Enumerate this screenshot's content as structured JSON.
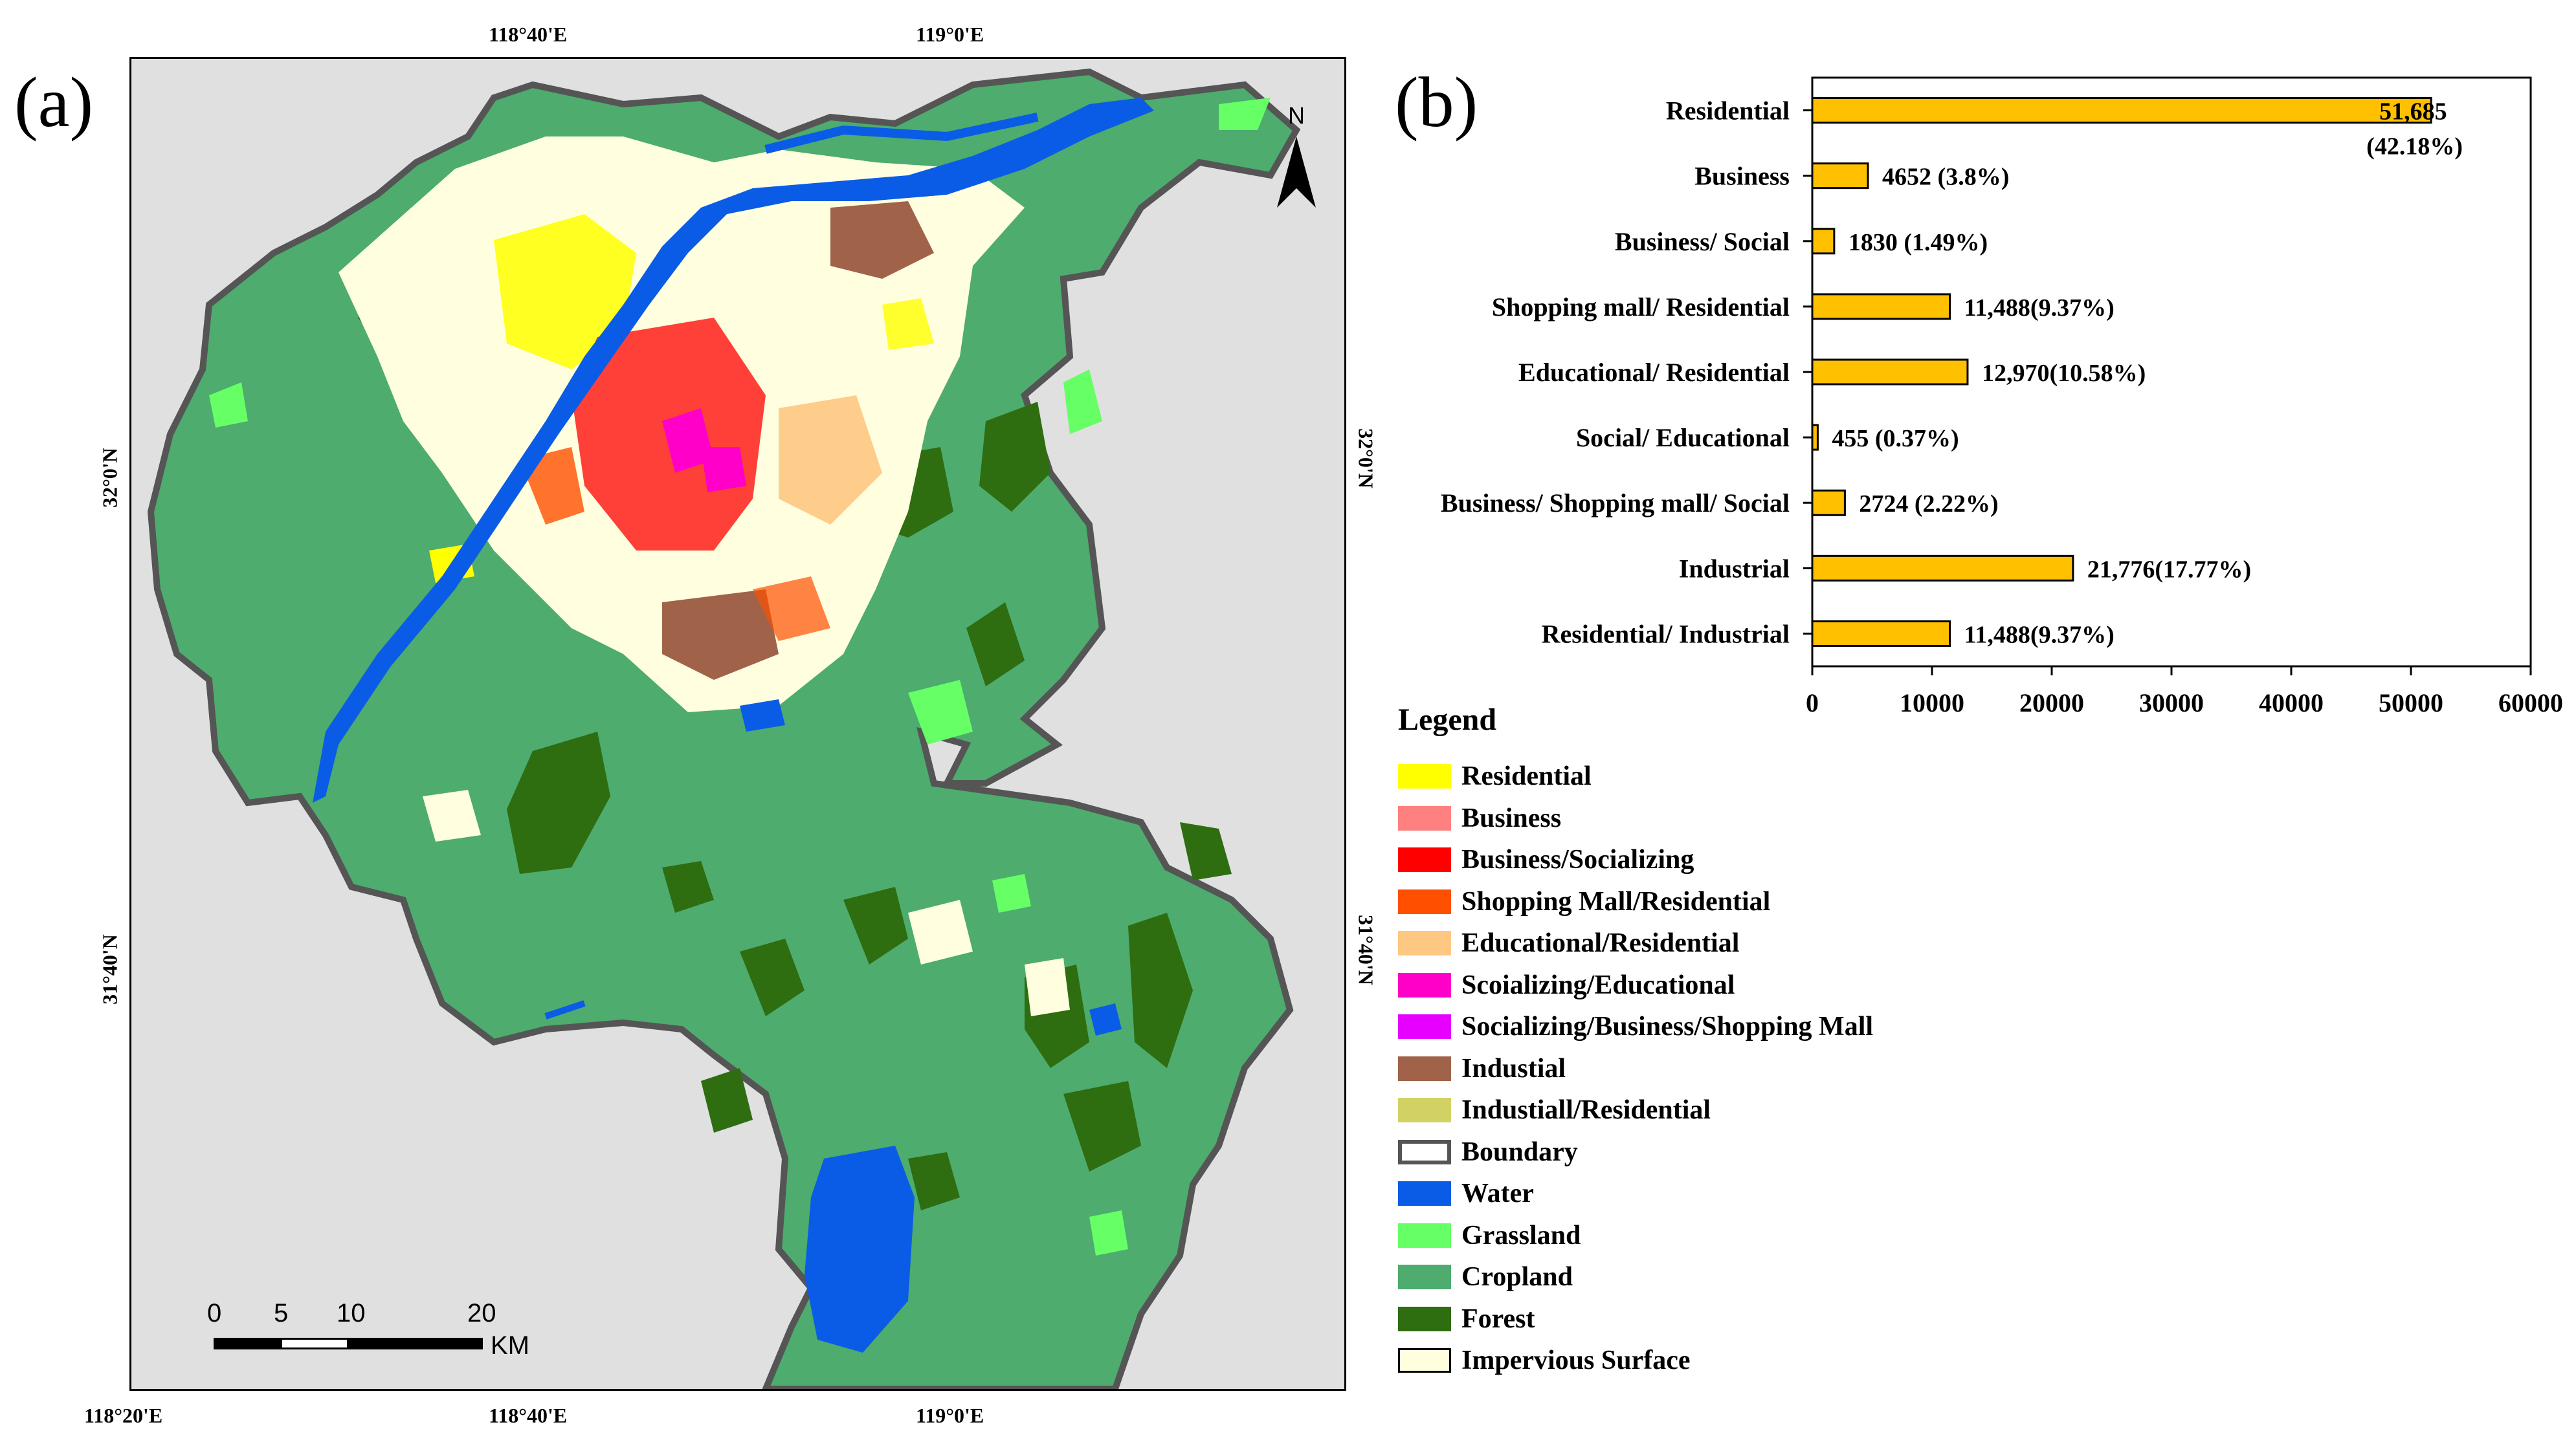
{
  "panels": {
    "a": "(a)",
    "b": "(b)"
  },
  "map": {
    "coords_top": [
      "118°40'E",
      "119°0'E"
    ],
    "coords_bottom": [
      "118°20'E",
      "118°40'E",
      "119°0'E"
    ],
    "coords_left": [
      "32°0'N",
      "31°40'N"
    ],
    "coords_right": [
      "32°0'N",
      "31°40'N"
    ],
    "north_label": "N",
    "scale_labels": [
      "0",
      "5",
      "10",
      "20"
    ],
    "scale_unit": "KM",
    "colors": {
      "background": "#e0e0e0",
      "cropland": "#4dac6e",
      "forest": "#2e6d10",
      "grassland": "#66ff66",
      "water": "#0a5ce6",
      "impervious": "#ffffe0",
      "residential": "#ffff00",
      "business_social": "#ff0000",
      "industrial": "#a0634a",
      "educational": "#ffc882",
      "social_edu": "#ff00c8",
      "boundary": "#555555"
    }
  },
  "chart_data": {
    "type": "bar",
    "orientation": "horizontal",
    "categories": [
      "Residential",
      "Business",
      "Business/ Social",
      "Shopping mall/ Residential",
      "Educational/ Residential",
      "Social/ Educational",
      "Business/ Shopping mall/ Social",
      "Industrial",
      "Residential/ Industrial"
    ],
    "values": [
      51685,
      4652,
      1830,
      11488,
      12970,
      455,
      2724,
      21776,
      11488
    ],
    "data_labels": [
      "51,685",
      "4652  (3.8%)",
      "1830  (1.49%)",
      "11,488(9.37%)",
      "12,970(10.58%)",
      "455  (0.37%)",
      "2724  (2.22%)",
      "21,776(17.77%)",
      "11,488(9.37%)"
    ],
    "data_label_extra": "(42.18%)",
    "xlim": [
      0,
      60000
    ],
    "xticks": [
      "0",
      "10000",
      "20000",
      "30000",
      "40000",
      "50000",
      "60000"
    ],
    "bar_color": "#ffc000",
    "title": "",
    "xlabel": "",
    "ylabel": ""
  },
  "legend": {
    "title": "Legend",
    "items": [
      {
        "label": "Residential",
        "color": "#ffff00"
      },
      {
        "label": "Business",
        "color": "#ff8080"
      },
      {
        "label": "Business/Socializing",
        "color": "#ff0000"
      },
      {
        "label": "Shopping Mall/Residential",
        "color": "#ff5000"
      },
      {
        "label": "Educational/Residential",
        "color": "#ffc882"
      },
      {
        "label": "Scoializing/Educational",
        "color": "#ff00c8"
      },
      {
        "label": "Socializing/Business/Shopping Mall",
        "color": "#e600ff"
      },
      {
        "label": "Industial",
        "color": "#a0634a"
      },
      {
        "label": "Industiall/Residential",
        "color": "#d2d264"
      },
      {
        "label": "Boundary",
        "color": "#ffffff"
      },
      {
        "label": "Water",
        "color": "#0a5ce6"
      },
      {
        "label": "Grassland",
        "color": "#66ff66"
      },
      {
        "label": "Cropland",
        "color": "#4dac6e"
      },
      {
        "label": "Forest",
        "color": "#2e6d10"
      },
      {
        "label": "Impervious Surface",
        "color": "#ffffe0"
      }
    ]
  }
}
